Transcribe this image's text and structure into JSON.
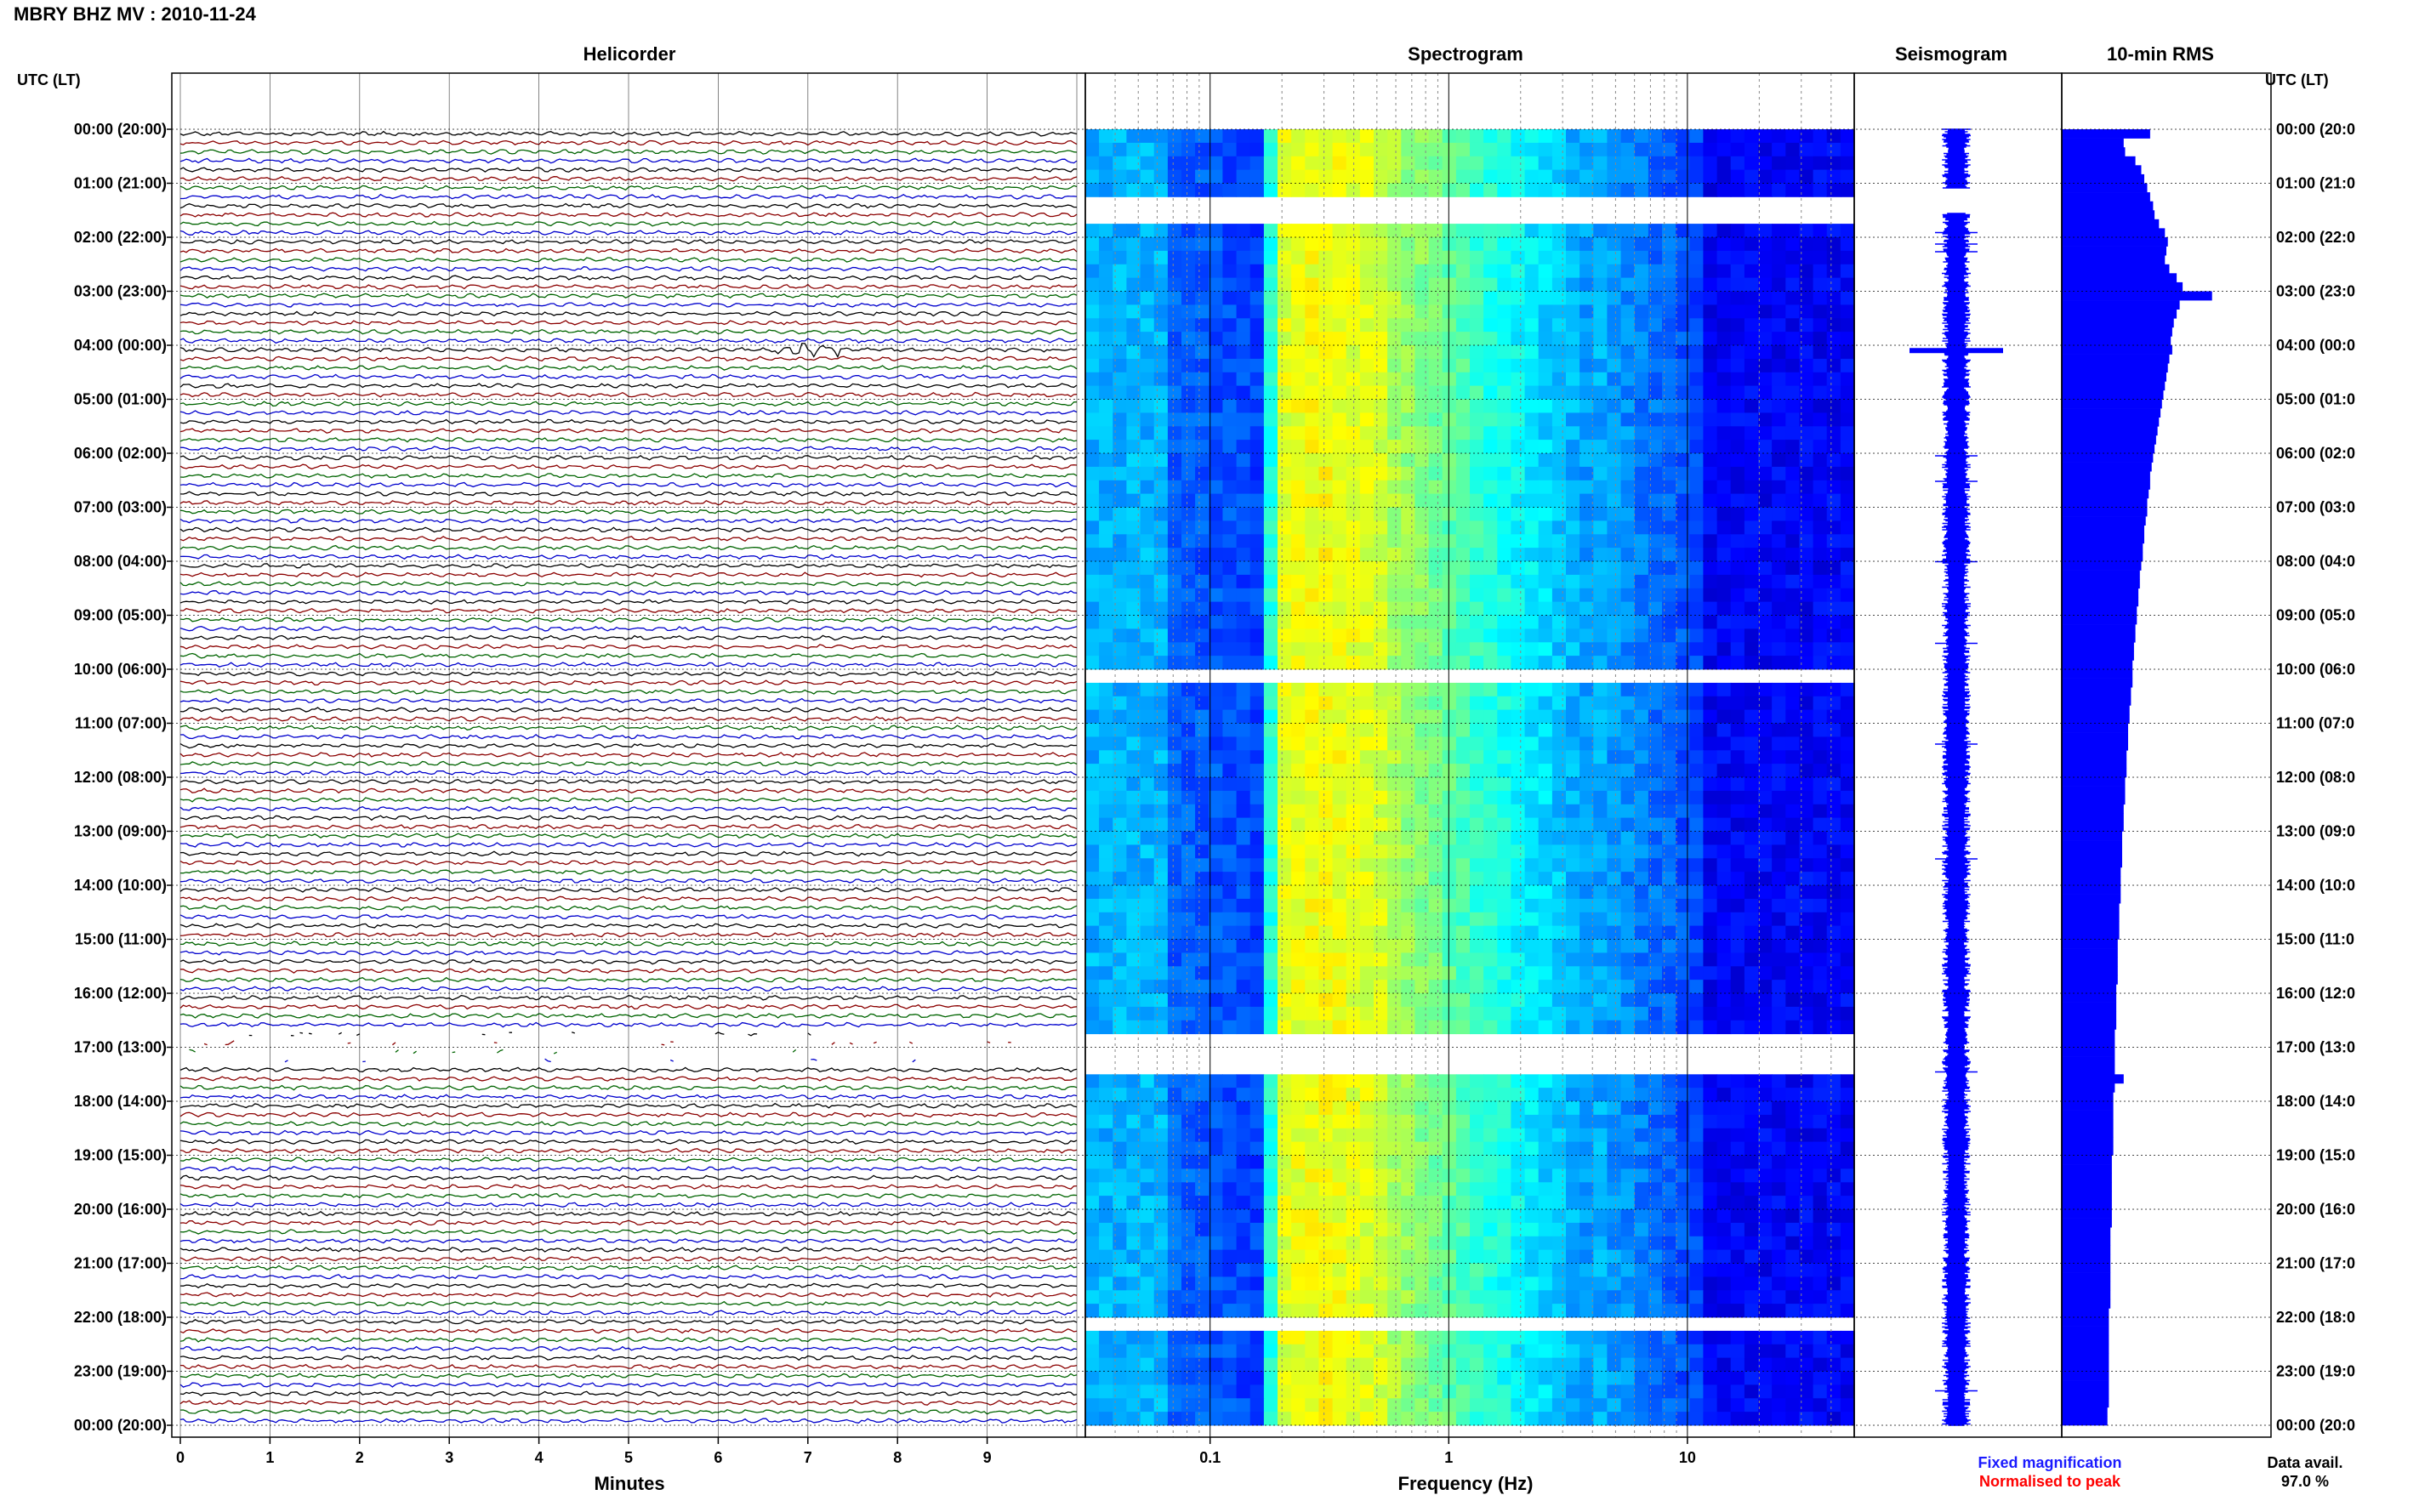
{
  "title": "MBRY BHZ MV : 2010-11-24",
  "panels": {
    "helicorder": "Helicorder",
    "spectrogram": "Spectrogram",
    "seismogram": "Seismogram",
    "rms": "10-min RMS"
  },
  "time_axis_label": "UTC (LT)",
  "hour_labels": [
    "00:00 (20:00)",
    "01:00 (21:00)",
    "02:00 (22:00)",
    "03:00 (23:00)",
    "04:00 (00:00)",
    "05:00 (01:00)",
    "06:00 (02:00)",
    "07:00 (03:00)",
    "08:00 (04:00)",
    "09:00 (05:00)",
    "10:00 (06:00)",
    "11:00 (07:00)",
    "12:00 (08:00)",
    "13:00 (09:00)",
    "14:00 (10:00)",
    "15:00 (11:00)",
    "16:00 (12:00)",
    "17:00 (13:00)",
    "18:00 (14:00)",
    "19:00 (15:00)",
    "20:00 (16:00)",
    "21:00 (17:00)",
    "22:00 (18:00)",
    "23:00 (19:00)",
    "00:00 (20:00)"
  ],
  "right_hour_labels": [
    "00:00 (20:0",
    "01:00 (21:0",
    "02:00 (22:0",
    "03:00 (23:0",
    "04:00 (00:0",
    "05:00 (01:0",
    "06:00 (02:0",
    "07:00 (03:0",
    "08:00 (04:0",
    "09:00 (05:0",
    "10:00 (06:0",
    "11:00 (07:0",
    "12:00 (08:0",
    "13:00 (09:0",
    "14:00 (10:0",
    "15:00 (11:0",
    "16:00 (12:0",
    "17:00 (13:0",
    "18:00 (14:0",
    "19:00 (15:0",
    "20:00 (16:0",
    "21:00 (17:0",
    "22:00 (18:0",
    "23:00 (19:0",
    "00:00 (20:0"
  ],
  "legend": {
    "fixed": "Fixed magnification",
    "normalised": "Normalised to peak",
    "fixed_color": "#1a1aff",
    "normalised_color": "#ff0000"
  },
  "data_avail": {
    "label": "Data avail.",
    "value": "97.0 %"
  },
  "chart_data": [
    {
      "type": "line",
      "panel": "Helicorder",
      "xlabel": "Minutes",
      "xlim": [
        0,
        10
      ],
      "x_ticks": [
        "0",
        "1",
        "2",
        "3",
        "4",
        "5",
        "6",
        "7",
        "8",
        "9"
      ],
      "ylim_hours": [
        0,
        24
      ],
      "traces_per_hour": 6,
      "trace_colors": [
        "#000000",
        "#8b0000",
        "#006400",
        "#0000cd"
      ],
      "data_gaps_hours": [
        [
          16.6,
          17.3
        ]
      ],
      "events": [
        {
          "hour": 4.0,
          "minute": 7.0,
          "note": "largest transient"
        }
      ]
    },
    {
      "type": "heatmap",
      "panel": "Spectrogram",
      "xlabel": "Frequency (Hz)",
      "x_scale": "log",
      "xlim": [
        0.03,
        50
      ],
      "x_tick_labels": [
        "0.1",
        "1",
        "10"
      ],
      "x_tick_values": [
        0.1,
        1,
        10
      ],
      "colormap": "jet",
      "peak_band_hz": [
        0.2,
        0.5
      ],
      "data_gaps_hours": [
        [
          1.1,
          1.55
        ],
        [
          6.95,
          7.0
        ],
        [
          8.2,
          8.25
        ],
        [
          10.0,
          10.05
        ],
        [
          16.55,
          17.45
        ],
        [
          21.95,
          22.05
        ]
      ]
    },
    {
      "type": "line",
      "panel": "Seismogram",
      "ylim_hours": [
        0,
        24
      ],
      "color": "#0000ff",
      "data_gaps_hours": [
        [
          1.1,
          1.55
        ]
      ],
      "spikes": [
        {
          "hour": 4.1,
          "amplitude": 1.0
        }
      ]
    },
    {
      "type": "bar",
      "panel": "10-min RMS",
      "orientation": "horizontal",
      "bin_minutes": 10,
      "ylim_hours": [
        0,
        24
      ],
      "color": "#0000ff",
      "values": [
        0.6,
        0.42,
        0.43,
        0.5,
        0.54,
        0.56,
        0.58,
        0.6,
        0.62,
        0.63,
        0.66,
        0.7,
        0.72,
        0.71,
        0.7,
        0.73,
        0.78,
        0.82,
        1.02,
        0.8,
        0.78,
        0.76,
        0.75,
        0.74,
        0.75,
        0.73,
        0.72,
        0.71,
        0.7,
        0.69,
        0.68,
        0.67,
        0.66,
        0.65,
        0.64,
        0.63,
        0.62,
        0.61,
        0.6,
        0.6,
        0.59,
        0.58,
        0.58,
        0.57,
        0.56,
        0.56,
        0.55,
        0.55,
        0.54,
        0.53,
        0.53,
        0.52,
        0.52,
        0.51,
        0.51,
        0.5,
        0.5,
        0.49,
        0.49,
        0.48,
        0.48,
        0.48,
        0.47,
        0.47,
        0.46,
        0.46,
        0.45,
        0.45,
        0.45,
        0.44,
        0.44,
        0.44,
        0.43,
        0.43,
        0.43,
        0.42,
        0.42,
        0.42,
        0.41,
        0.41,
        0.41,
        0.41,
        0.4,
        0.4,
        0.4,
        0.4,
        0.39,
        0.39,
        0.39,
        0.39,
        0.38,
        0.38,
        0.38,
        0.38,
        0.38,
        0.37,
        0.37,
        0.37,
        0.37,
        0.37,
        0.36,
        0.36,
        0.36,
        0.36,
        0.36,
        0.42,
        0.36,
        0.35,
        0.35,
        0.35,
        0.35,
        0.35,
        0.35,
        0.35,
        0.34,
        0.34,
        0.34,
        0.34,
        0.34,
        0.34,
        0.34,
        0.34,
        0.33,
        0.33,
        0.33,
        0.33,
        0.33,
        0.33,
        0.33,
        0.33,
        0.33,
        0.32,
        0.32,
        0.32,
        0.32,
        0.32,
        0.32,
        0.32,
        0.32,
        0.32,
        0.32,
        0.32,
        0.31,
        0.31
      ]
    }
  ]
}
